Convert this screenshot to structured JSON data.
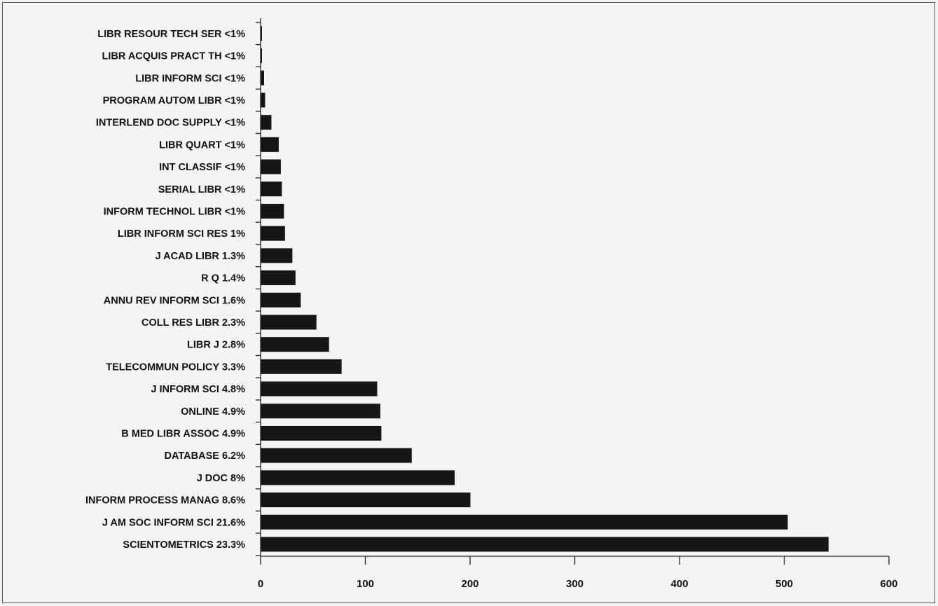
{
  "chart_data": {
    "type": "bar",
    "orientation": "horizontal",
    "title": "",
    "xlabel": "",
    "ylabel": "",
    "xlim": [
      0,
      600
    ],
    "grid": false,
    "legend": "none",
    "bar_color": "#161616",
    "x_ticks": [
      "0",
      "100",
      "200",
      "300",
      "400",
      "500",
      "600"
    ],
    "categories": [
      "LIBR RESOUR TECH SER  <1%",
      "LIBR ACQUIS PRACT TH  <1%",
      "LIBR INFORM SCI  <1%",
      "PROGRAM AUTOM LIBR  <1%",
      "INTERLEND DOC SUPPLY  <1%",
      "LIBR QUART  <1%",
      "INT CLASSIF  <1%",
      "SERIAL LIBR  <1%",
      "INFORM TECHNOL LIBR  <1%",
      "LIBR INFORM SCI RES  1%",
      "J ACAD LIBR  1.3%",
      "R Q  1.4%",
      "ANNU REV INFORM SCI  1.6%",
      "COLL RES LIBR  2.3%",
      "LIBR J  2.8%",
      "TELECOMMUN POLICY  3.3%",
      "J  INFORM SCI  4.8%",
      "ONLINE  4.9%",
      "B MED LIBR ASSOC  4.9%",
      "DATABASE  6.2%",
      "J DOC  8%",
      "INFORM PROCESS MANAG  8.6%",
      "J AM SOC INFORM SCI  21.6%",
      "SCIENTOMETRICS  23.3%"
    ],
    "values": [
      1,
      1,
      3,
      4,
      10,
      17,
      19,
      20,
      22,
      23,
      30,
      33,
      38,
      53,
      65,
      77,
      111,
      114,
      115,
      144,
      185,
      200,
      503,
      542
    ]
  }
}
